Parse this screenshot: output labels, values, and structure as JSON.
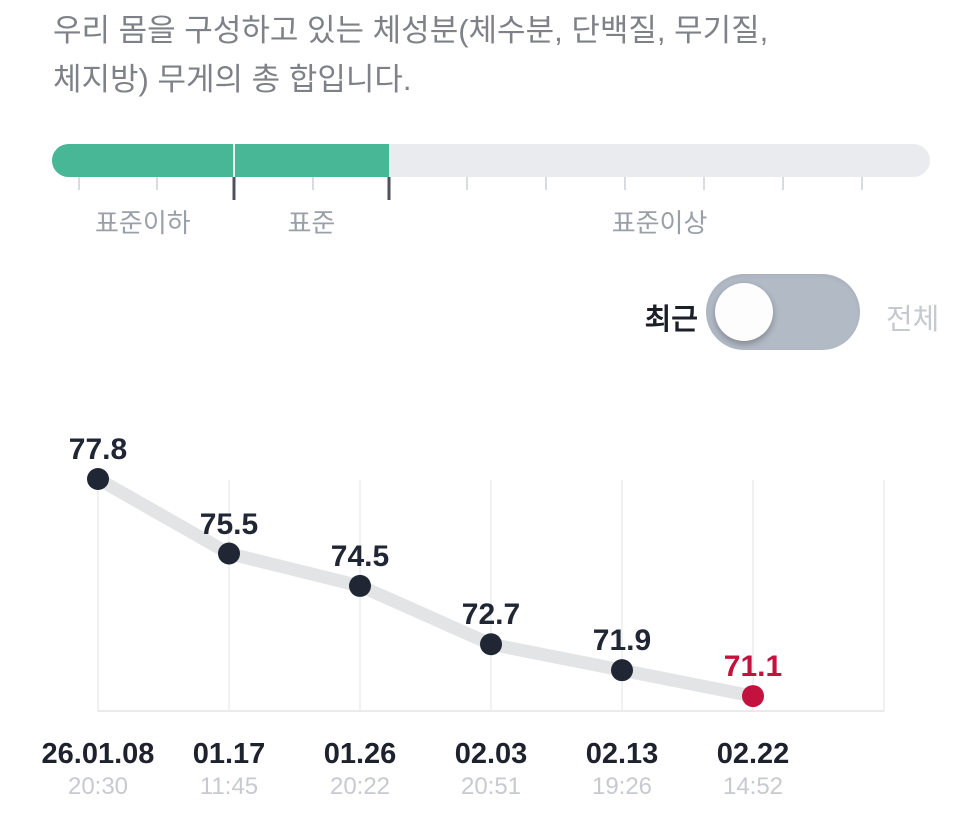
{
  "description": {
    "line1": "우리 몸을 구성하고 있는 체성분(체수분, 단백질, 무기질,",
    "line2": "체지방) 무게의 총 합입니다."
  },
  "gauge": {
    "labels": [
      "표준이하",
      "표준",
      "표준이상"
    ],
    "fill_percent": 38.4,
    "segment_boundaries_percent": [
      20.7,
      38.4
    ],
    "colors": {
      "fill": "#47b795",
      "track": "#e9ebee"
    }
  },
  "toggle": {
    "left_label": "최근",
    "right_label": "전체",
    "selected": "최근"
  },
  "chart_data": {
    "type": "line",
    "x": [
      {
        "date": "26.01.08",
        "time": "20:30"
      },
      {
        "date": "01.17",
        "time": "11:45"
      },
      {
        "date": "01.26",
        "time": "20:22"
      },
      {
        "date": "02.03",
        "time": "20:51"
      },
      {
        "date": "02.13",
        "time": "19:26"
      },
      {
        "date": "02.22",
        "time": "14:52"
      }
    ],
    "values": [
      77.8,
      75.5,
      74.5,
      72.7,
      71.9,
      71.1
    ],
    "highlight_index": 5,
    "grid": "vertical-only",
    "legend": "none",
    "colors": {
      "point": "#212634",
      "highlight": "#c2123d",
      "line": "#e3e4e6",
      "gridline": "#f0f1f3",
      "baseline": "#eaeaec",
      "axis_date": "#1e222d",
      "axis_time": "#c7cad0"
    }
  }
}
